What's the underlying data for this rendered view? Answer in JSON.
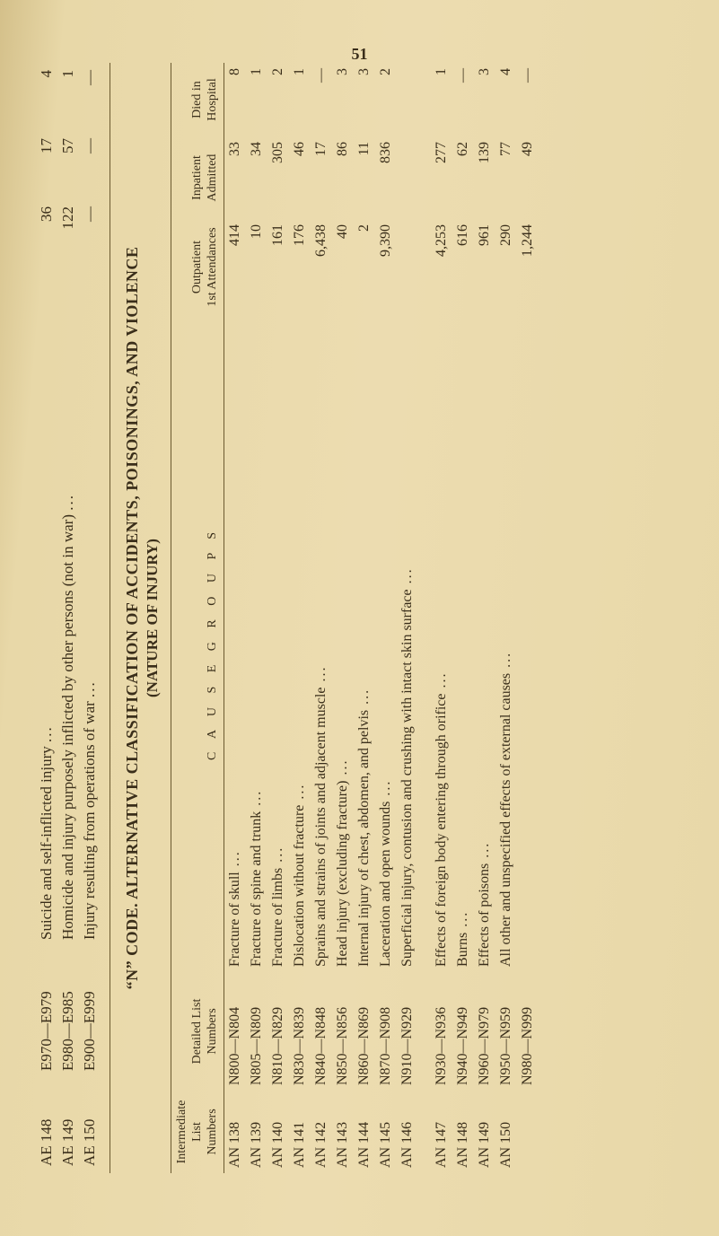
{
  "page_number": "51",
  "ae_rows": [
    {
      "code": "AE 148",
      "range": "E970—E979",
      "desc": "Suicide and self-inflicted injury",
      "n1": "36",
      "n2": "17",
      "n3": "4"
    },
    {
      "code": "AE 149",
      "range": "E980—E985",
      "desc": "Homicide and injury purposely inflicted by other persons (not in war)",
      "n1": "122",
      "n2": "57",
      "n3": "1"
    },
    {
      "code": "AE 150",
      "range": "E900—E999",
      "desc": "Injury resulting from operations of war",
      "n1": "—",
      "n2": "—",
      "n3": "—"
    }
  ],
  "heading": "“N” CODE.  ALTERNATIVE CLASSIFICATION OF ACCIDENTS, POISONINGS, AND VIOLENCE",
  "subheading": "(NATURE OF INJURY)",
  "columns": {
    "inter": "Intermediate\nList\nNumbers",
    "det": "Detailed List\nNumbers",
    "cause": "C A U S E   G R O U P S",
    "out": "Outpatient\n1st Attendances",
    "in": "Inpatient\nAdmitted",
    "died": "Died in\nHospital"
  },
  "rows": [
    {
      "inter": "AN 138",
      "det": "N800—N804",
      "cause": "Fracture of skull",
      "out": "414",
      "in": "33",
      "died": "8"
    },
    {
      "inter": "AN 139",
      "det": "N805—N809",
      "cause": "Fracture of spine and trunk",
      "out": "10",
      "in": "34",
      "died": "1"
    },
    {
      "inter": "AN 140",
      "det": "N810—N829",
      "cause": "Fracture of limbs",
      "out": "161",
      "in": "305",
      "died": "2"
    },
    {
      "inter": "AN 141",
      "det": "N830—N839",
      "cause": "Dislocation without fracture",
      "out": "176",
      "in": "46",
      "died": "1"
    },
    {
      "inter": "AN 142",
      "det": "N840—N848",
      "cause": "Sprains and strains of joints and adjacent muscle",
      "out": "6,438",
      "in": "17",
      "died": "—"
    },
    {
      "inter": "AN 143",
      "det": "N850—N856",
      "cause": "Head injury (excluding fracture)",
      "out": "40",
      "in": "86",
      "died": "3"
    },
    {
      "inter": "AN 144",
      "det": "N860—N869",
      "cause": "Internal injury of chest, abdomen, and pelvis",
      "out": "2",
      "in": "11",
      "died": "3"
    },
    {
      "inter": "AN 145",
      "det": "N870—N908",
      "cause": "Laceration and open wounds",
      "out": "9,390",
      "in": "836",
      "died": "2"
    },
    {
      "inter": "AN 146",
      "det": "N910—N929",
      "cause": "Superficial injury, contusion and crushing with intact skin surface",
      "out": "",
      "in": "",
      "died": ""
    }
  ],
  "rows2": [
    {
      "inter": "AN 147",
      "det": "N930—N936",
      "cause": "Effects of foreign body entering through orifice",
      "out": "4,253",
      "in": "277",
      "died": "1"
    },
    {
      "inter": "AN 148",
      "det": "N940—N949",
      "cause": "Burns",
      "out": "616",
      "in": "62",
      "died": "—"
    },
    {
      "inter": "AN 149",
      "det": "N960—N979",
      "cause": "Effects of poisons",
      "out": "961",
      "in": "139",
      "died": "3"
    },
    {
      "inter": "AN 150",
      "det": "N950—N959",
      "cause": "All other and unspecified effects of external causes",
      "out": "290",
      "in": "77",
      "died": "4"
    },
    {
      "inter": "",
      "det": "N980—N999",
      "cause": "",
      "out": "1,244",
      "in": "49",
      "died": "—"
    }
  ]
}
